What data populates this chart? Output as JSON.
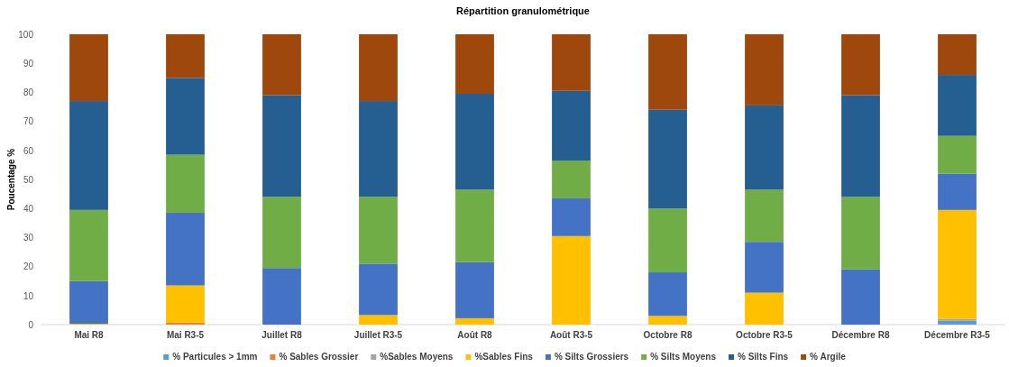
{
  "chart_data": {
    "type": "bar",
    "title": "Répartition granulométrique",
    "ylabel": "Poucentage %",
    "stacked": true,
    "legend": "bottom",
    "grid": false,
    "categories": [
      "Mai R8",
      "Mai R3-5",
      "Juillet R8",
      "Juillet R3-5",
      "Août R8",
      "Août R3-5",
      "Octobre R8",
      "Octobre R3-5",
      "Décembre R8",
      "Décembre R3-5"
    ],
    "ylim": [
      0,
      100
    ],
    "yticks": [
      0,
      10,
      20,
      30,
      40,
      50,
      60,
      70,
      80,
      90,
      100
    ],
    "series": [
      {
        "name": "% Particules > 1mm",
        "color": "#5b9bd5",
        "values": [
          0,
          0,
          0,
          0,
          0,
          0,
          0,
          0,
          0,
          1.3
        ]
      },
      {
        "name": "% Sables Grossier",
        "color": "#ed7d31",
        "values": [
          0,
          0.7,
          0,
          0,
          0,
          0,
          0,
          0,
          0,
          0
        ]
      },
      {
        "name": "%Sables Moyens",
        "color": "#a5a5a5",
        "values": [
          0,
          0,
          0,
          0,
          0,
          0,
          0,
          0,
          0,
          0.7
        ]
      },
      {
        "name": "%Sables Fins",
        "color": "#ffc000",
        "values": [
          0.3,
          12.8,
          0,
          3.3,
          2.2,
          30.5,
          3,
          11,
          0,
          37.5
        ]
      },
      {
        "name": "% Silts Grossiers",
        "color": "#4472c4",
        "values": [
          14.7,
          25,
          19.5,
          17.7,
          19.3,
          13,
          15,
          17.5,
          19,
          12.5
        ]
      },
      {
        "name": "% Silts Moyens",
        "color": "#70ad47",
        "values": [
          24.5,
          20,
          24.5,
          23,
          25,
          13,
          22,
          18,
          25,
          13
        ]
      },
      {
        "name": "% Silts Fins",
        "color": "#255e91",
        "values": [
          37.5,
          26.5,
          35,
          33,
          33,
          24,
          34,
          29,
          35,
          21
        ]
      },
      {
        "name": "% Argile",
        "color": "#9e480e",
        "values": [
          23,
          15,
          21,
          23,
          20.5,
          19.5,
          26,
          24.5,
          21,
          14
        ]
      }
    ]
  }
}
